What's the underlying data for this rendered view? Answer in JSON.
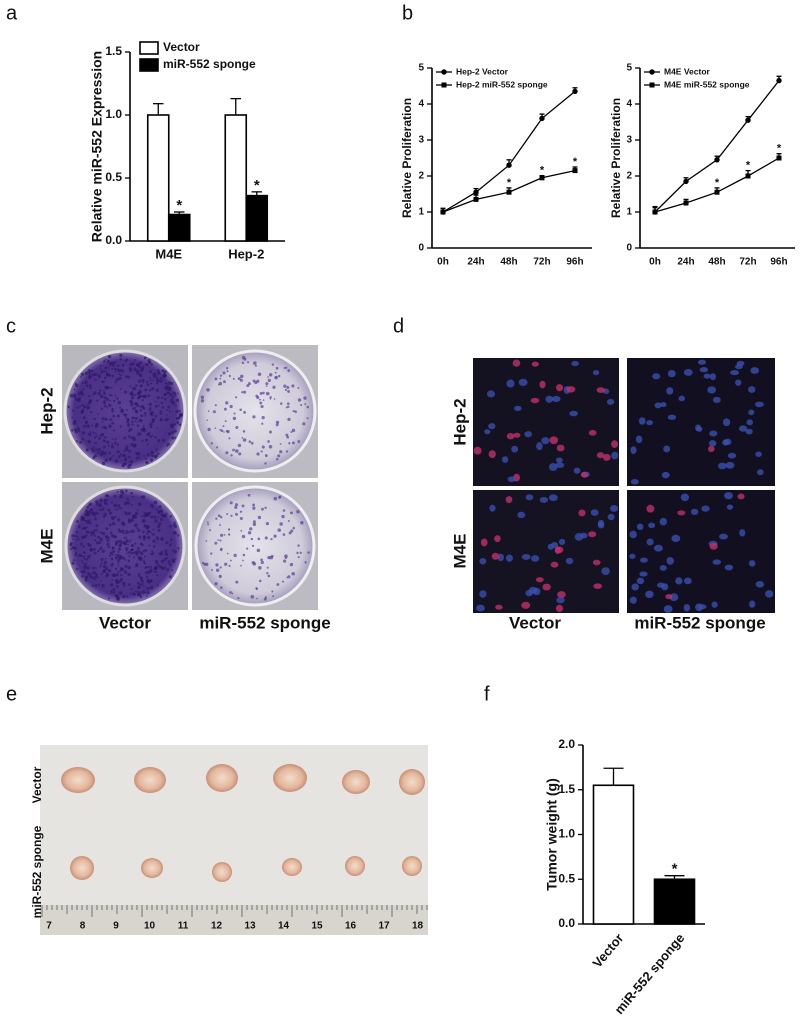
{
  "panel_labels": [
    "a",
    "b",
    "c",
    "d",
    "e",
    "f"
  ],
  "chart_data": [
    {
      "type": "bar",
      "ylabel": "Relative miR-552 Expression",
      "categories": [
        "M4E",
        "Hep-2"
      ],
      "series": [
        {
          "name": "Vector",
          "color": "#ffffff",
          "values": [
            1,
            1
          ],
          "errors": [
            0.09,
            0.13
          ],
          "significant": [
            false,
            false
          ]
        },
        {
          "name": "miR-552 sponge",
          "color": "#000000",
          "values": [
            0.21,
            0.36
          ],
          "errors": [
            0.02,
            0.03
          ],
          "significant": [
            true,
            true
          ]
        }
      ],
      "significance_mark": "*",
      "ylim": [
        0,
        1.5
      ],
      "yticks": [
        {
          "value": 0,
          "label": "0.0"
        },
        0.5,
        {
          "value": 1,
          "label": "1.0"
        },
        1.5
      ],
      "legend": "top-right"
    },
    {
      "type": "line",
      "ylabel": "Relative Proliferation",
      "categories": [
        "0h",
        "24h",
        "48h",
        "72h",
        "96h"
      ],
      "series": [
        {
          "name": "Hep-2 Vector",
          "color": "#000000",
          "marker": "circle",
          "values": [
            1.0,
            1.55,
            2.3,
            3.6,
            4.35
          ],
          "errors": [
            0.1,
            0.1,
            0.15,
            0.12,
            0.1
          ],
          "significant": [
            false,
            false,
            false,
            false,
            false
          ]
        },
        {
          "name": "Hep-2 miR-552 sponge",
          "color": "#000000",
          "marker": "square",
          "values": [
            1.0,
            1.35,
            1.55,
            1.95,
            2.15
          ],
          "errors": [
            0.1,
            0.12,
            0.12,
            0.06,
            0.1
          ],
          "significant": [
            false,
            false,
            true,
            true,
            true
          ]
        }
      ],
      "significance_mark": "*",
      "ylim": [
        0,
        5
      ],
      "yticks": [
        0,
        1,
        2,
        3,
        4,
        5
      ],
      "legend": "top-left"
    },
    {
      "type": "line",
      "ylabel": "Relative Proliferation",
      "categories": [
        "0h",
        "24h",
        "48h",
        "72h",
        "96h"
      ],
      "series": [
        {
          "name": "M4E Vector",
          "color": "#000000",
          "marker": "circle",
          "values": [
            1.0,
            1.85,
            2.45,
            3.55,
            4.65
          ],
          "errors": [
            0.12,
            0.1,
            0.1,
            0.1,
            0.12
          ],
          "significant": [
            false,
            false,
            false,
            false,
            false
          ]
        },
        {
          "name": "M4E miR-552 sponge",
          "color": "#000000",
          "marker": "square",
          "values": [
            1.0,
            1.25,
            1.55,
            2.0,
            2.5
          ],
          "errors": [
            0.15,
            0.1,
            0.12,
            0.15,
            0.12
          ],
          "significant": [
            false,
            false,
            true,
            true,
            true
          ]
        }
      ],
      "significance_mark": "*",
      "ylim": [
        0,
        5
      ],
      "yticks": [
        0,
        1,
        2,
        3,
        4,
        5
      ],
      "legend": "top-left"
    },
    {
      "type": "bar",
      "ylabel": "Tumor weight (g)",
      "categories": [
        "Vector",
        "miR-552 sponge"
      ],
      "values": [
        1.55,
        0.5
      ],
      "errors": [
        0.19,
        0.04
      ],
      "colors": [
        "#ffffff",
        "#000000"
      ],
      "significant": [
        false,
        true
      ],
      "significance_mark": "*",
      "ylim": [
        0,
        2
      ],
      "yticks": [
        {
          "value": 0,
          "label": "0.0"
        },
        0.5,
        {
          "value": 1,
          "label": "1.0"
        },
        1.5,
        {
          "value": 2,
          "label": "2.0"
        }
      ]
    }
  ],
  "colony_assay": {
    "rows": [
      "Hep-2",
      "M4E"
    ],
    "columns": [
      "Vector",
      "miR-552 sponge"
    ]
  },
  "fluorescence": {
    "rows": [
      "Hep-2",
      "M4E"
    ],
    "columns": [
      "Vector",
      "miR-552 sponge"
    ]
  },
  "xenograft": {
    "rows": [
      "Vector",
      "miR-552 sponge"
    ],
    "ruler": [
      "7",
      "8",
      "9",
      "10",
      "11",
      "12",
      "13",
      "14",
      "15",
      "16",
      "17",
      "18"
    ]
  }
}
